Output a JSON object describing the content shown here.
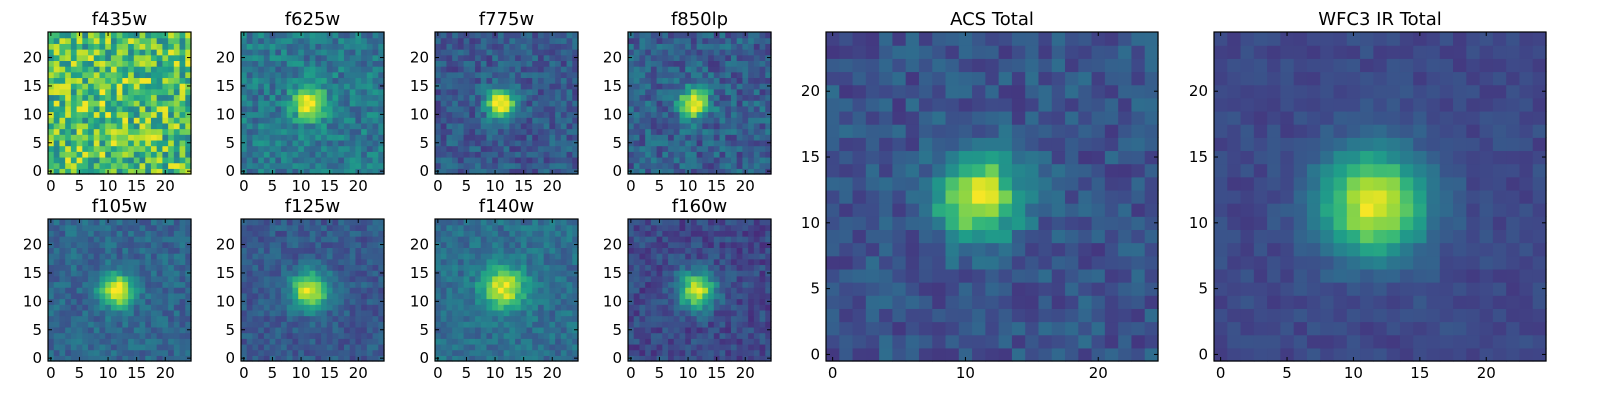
{
  "chart_data": {
    "type": "heatmap",
    "colormap": "viridis",
    "grid": false,
    "panels": [
      {
        "title": "f435w",
        "size": 25,
        "xticks": [
          0,
          5,
          10,
          15,
          20
        ],
        "yticks": [
          0,
          5,
          10,
          15,
          20
        ],
        "source": {
          "center": [
            11.5,
            12.0
          ],
          "sigma": 3.0,
          "peak": 0.06,
          "noise": 0.28,
          "background": 0.7
        }
      },
      {
        "title": "f625w",
        "size": 25,
        "xticks": [
          0,
          5,
          10,
          15,
          20
        ],
        "yticks": [
          0,
          5,
          10,
          15,
          20
        ],
        "source": {
          "center": [
            11.5,
            12.0
          ],
          "sigma": 2.0,
          "peak": 0.65,
          "noise": 0.14,
          "background": 0.4
        }
      },
      {
        "title": "f775w",
        "size": 25,
        "xticks": [
          0,
          5,
          10,
          15,
          20
        ],
        "yticks": [
          0,
          5,
          10,
          15,
          20
        ],
        "source": {
          "center": [
            11.0,
            12.0
          ],
          "sigma": 1.8,
          "peak": 0.75,
          "noise": 0.12,
          "background": 0.28
        }
      },
      {
        "title": "f850lp",
        "size": 25,
        "xticks": [
          0,
          5,
          10,
          15,
          20
        ],
        "yticks": [
          0,
          5,
          10,
          15,
          20
        ],
        "source": {
          "center": [
            11.0,
            12.0
          ],
          "sigma": 1.8,
          "peak": 0.75,
          "noise": 0.14,
          "background": 0.3
        }
      },
      {
        "title": "f105w",
        "size": 25,
        "xticks": [
          0,
          5,
          10,
          15,
          20
        ],
        "yticks": [
          0,
          5,
          10,
          15,
          20
        ],
        "source": {
          "center": [
            11.5,
            12.0
          ],
          "sigma": 2.0,
          "peak": 0.7,
          "noise": 0.1,
          "background": 0.33
        }
      },
      {
        "title": "f125w",
        "size": 25,
        "xticks": [
          0,
          5,
          10,
          15,
          20
        ],
        "yticks": [
          0,
          5,
          10,
          15,
          20
        ],
        "source": {
          "center": [
            11.5,
            12.0
          ],
          "sigma": 2.3,
          "peak": 0.68,
          "noise": 0.09,
          "background": 0.28
        }
      },
      {
        "title": "f140w",
        "size": 25,
        "xticks": [
          0,
          5,
          10,
          15,
          20
        ],
        "yticks": [
          0,
          5,
          10,
          15,
          20
        ],
        "source": {
          "center": [
            11.5,
            12.5
          ],
          "sigma": 2.6,
          "peak": 0.62,
          "noise": 0.1,
          "background": 0.36
        }
      },
      {
        "title": "f160w",
        "size": 25,
        "xticks": [
          0,
          5,
          10,
          15,
          20
        ],
        "yticks": [
          0,
          5,
          10,
          15,
          20
        ],
        "source": {
          "center": [
            11.5,
            12.0
          ],
          "sigma": 2.3,
          "peak": 0.7,
          "noise": 0.1,
          "background": 0.22
        }
      },
      {
        "title": "ACS Total",
        "size": 25,
        "xticks": [
          0,
          10,
          20
        ],
        "yticks": [
          0,
          5,
          10,
          15,
          20
        ],
        "source": {
          "center": [
            11.0,
            12.0
          ],
          "sigma": 2.2,
          "peak": 0.72,
          "noise": 0.1,
          "background": 0.26
        }
      },
      {
        "title": "WFC3 IR Total",
        "size": 25,
        "xticks": [
          0,
          5,
          10,
          15,
          20
        ],
        "yticks": [
          0,
          5,
          10,
          15,
          20
        ],
        "source": {
          "center": [
            11.5,
            11.5
          ],
          "sigma": 2.8,
          "peak": 0.75,
          "noise": 0.05,
          "background": 0.22
        }
      }
    ]
  }
}
